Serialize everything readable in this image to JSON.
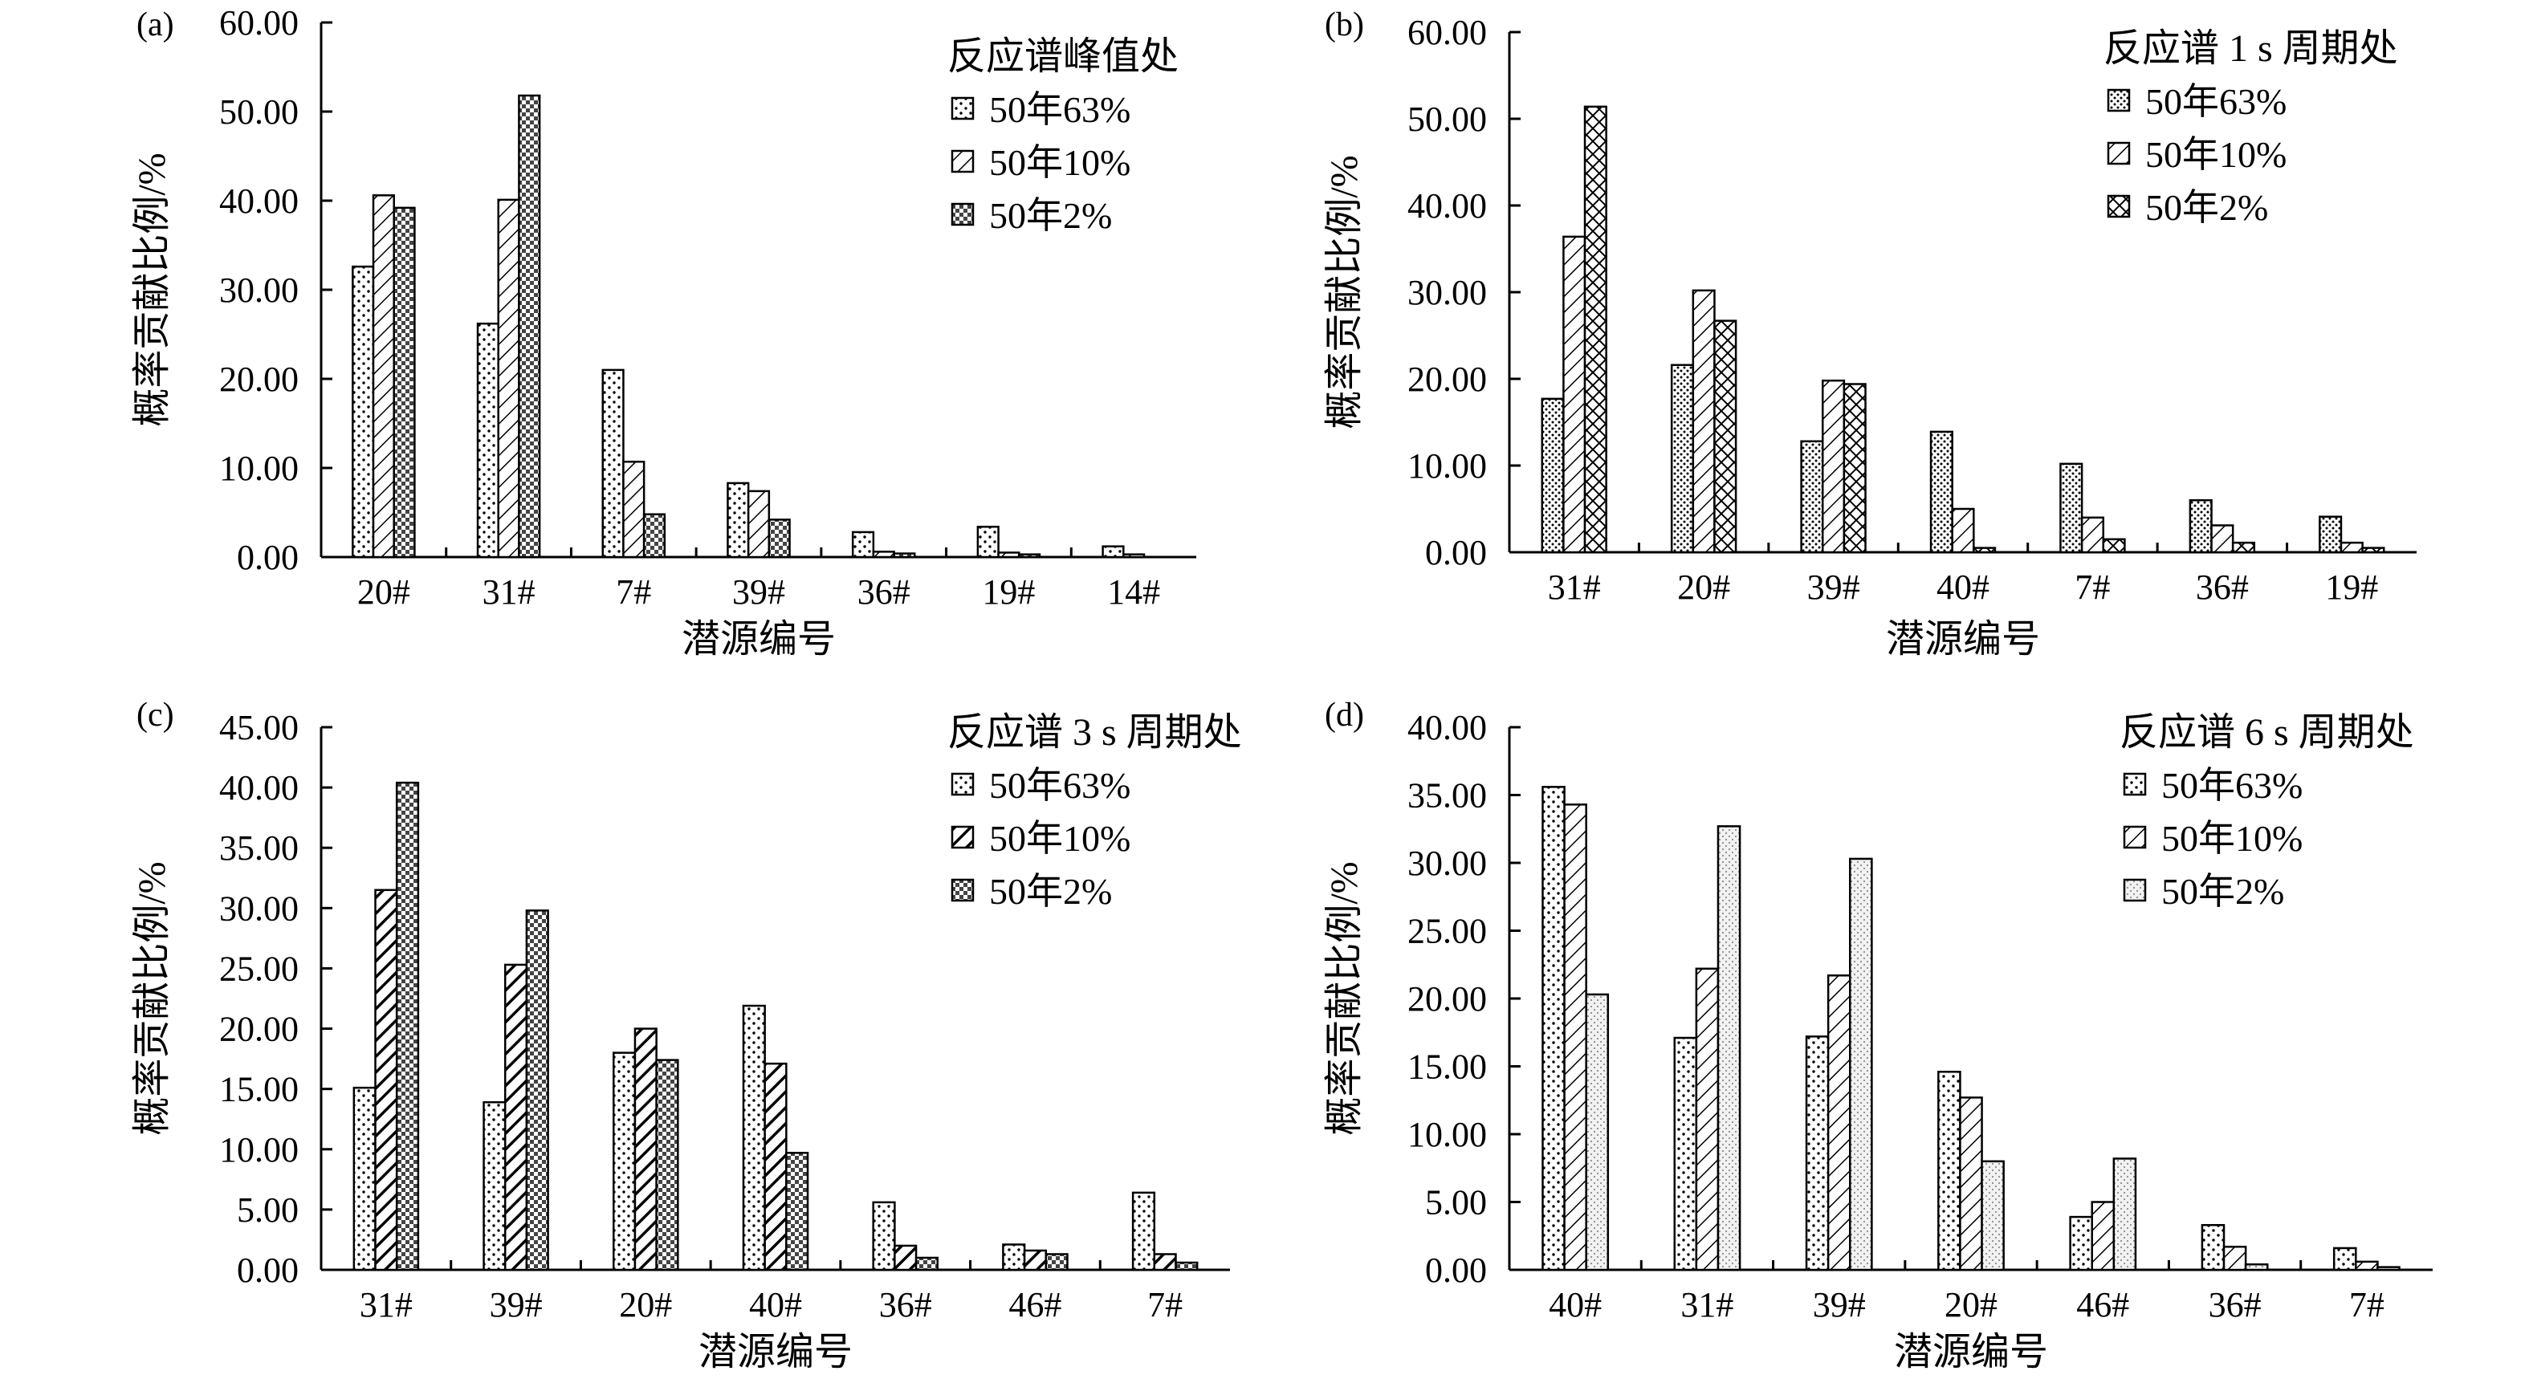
{
  "chart_data": [
    {
      "type": "bar",
      "panel_label": "(a)",
      "legend_title": "反应谱峰值处",
      "categories": [
        "20#",
        "31#",
        "7#",
        "39#",
        "36#",
        "19#",
        "14#"
      ],
      "series": [
        {
          "name": "50年63%",
          "pattern": "dots",
          "values": [
            32.6,
            26.2,
            21.0,
            8.3,
            2.8,
            3.4,
            1.2
          ]
        },
        {
          "name": "50年10%",
          "pattern": "hatch",
          "values": [
            40.6,
            40.1,
            10.7,
            7.4,
            0.6,
            0.5,
            0.3
          ]
        },
        {
          "name": "50年2%",
          "pattern": "check",
          "values": [
            39.2,
            51.8,
            4.8,
            4.2,
            0.4,
            0.3,
            0.0
          ]
        }
      ],
      "xlabel": "潜源编号",
      "ylabel": "概率贡献比例/%",
      "ylim": [
        0,
        60
      ],
      "yticks": [
        "0.00",
        "10.00",
        "20.00",
        "30.00",
        "40.00",
        "50.00",
        "60.00"
      ],
      "grid": false,
      "legend_position": "top-right"
    },
    {
      "type": "bar",
      "panel_label": "(b)",
      "legend_title": "反应谱 1 s 周期处",
      "categories": [
        "31#",
        "20#",
        "39#",
        "40#",
        "7#",
        "36#",
        "19#"
      ],
      "series": [
        {
          "name": "50年63%",
          "pattern": "dense-dots",
          "values": [
            17.7,
            21.6,
            12.8,
            13.9,
            10.2,
            6.0,
            4.1
          ]
        },
        {
          "name": "50年10%",
          "pattern": "hatch",
          "values": [
            36.4,
            30.2,
            19.8,
            5.0,
            4.0,
            3.1,
            1.1
          ]
        },
        {
          "name": "50年2%",
          "pattern": "cross",
          "values": [
            51.4,
            26.7,
            19.4,
            0.5,
            1.5,
            1.1,
            0.5
          ]
        }
      ],
      "xlabel": "潜源编号",
      "ylabel": "概率贡献比例/%",
      "ylim": [
        0,
        60
      ],
      "yticks": [
        "0.00",
        "10.00",
        "20.00",
        "30.00",
        "40.00",
        "50.00",
        "60.00"
      ],
      "grid": false,
      "legend_position": "top-right"
    },
    {
      "type": "bar",
      "panel_label": "(c)",
      "legend_title": "反应谱 3 s 周期处",
      "categories": [
        "31#",
        "39#",
        "20#",
        "40#",
        "36#",
        "46#",
        "7#"
      ],
      "series": [
        {
          "name": "50年63%",
          "pattern": "dots",
          "values": [
            15.1,
            13.9,
            18.0,
            21.9,
            5.6,
            2.1,
            6.4
          ]
        },
        {
          "name": "50年10%",
          "pattern": "bold-hatch",
          "values": [
            31.5,
            25.3,
            20.0,
            17.1,
            2.0,
            1.6,
            1.3
          ]
        },
        {
          "name": "50年2%",
          "pattern": "check",
          "values": [
            40.4,
            29.8,
            17.4,
            9.7,
            1.0,
            1.3,
            0.6
          ]
        }
      ],
      "xlabel": "潜源编号",
      "ylabel": "概率贡献比例/%",
      "ylim": [
        0,
        45
      ],
      "yticks": [
        "0.00",
        "5.00",
        "10.00",
        "15.00",
        "20.00",
        "25.00",
        "30.00",
        "35.00",
        "40.00",
        "45.00"
      ],
      "grid": false,
      "legend_position": "top-right"
    },
    {
      "type": "bar",
      "panel_label": "(d)",
      "legend_title": "反应谱 6 s 周期处",
      "categories": [
        "40#",
        "31#",
        "39#",
        "20#",
        "46#",
        "36#",
        "7#"
      ],
      "series": [
        {
          "name": "50年63%",
          "pattern": "dots",
          "values": [
            35.6,
            17.1,
            17.2,
            14.6,
            3.9,
            3.3,
            1.6
          ]
        },
        {
          "name": "50年10%",
          "pattern": "hatch",
          "values": [
            34.3,
            22.2,
            21.7,
            12.7,
            5.0,
            1.7,
            0.6
          ]
        },
        {
          "name": "50年2%",
          "pattern": "light-dots",
          "values": [
            20.3,
            32.7,
            30.3,
            8.0,
            8.2,
            0.4,
            0.2
          ]
        }
      ],
      "xlabel": "潜源编号",
      "ylabel": "概率贡献比例/%",
      "ylim": [
        0,
        40
      ],
      "yticks": [
        "0.00",
        "5.00",
        "10.00",
        "15.00",
        "20.00",
        "25.00",
        "30.00",
        "35.00",
        "40.00"
      ],
      "grid": false,
      "legend_position": "top-right"
    }
  ]
}
